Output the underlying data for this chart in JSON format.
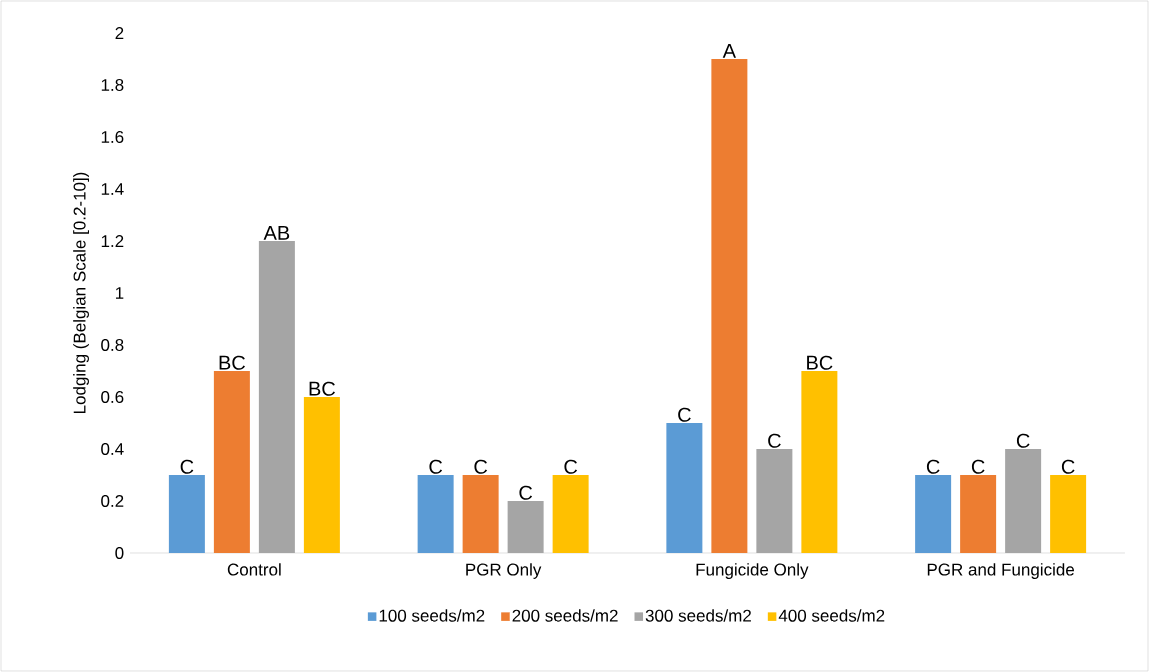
{
  "chart_data": {
    "type": "bar",
    "ylabel": "Lodging (Belgian Scale [0.2-10])",
    "categories": [
      "Control",
      "PGR Only",
      "Fungicide Only",
      "PGR and Fungicide"
    ],
    "series": [
      {
        "name": "100 seeds/m2",
        "color": "#5b9bd5",
        "values": [
          0.3,
          0.3,
          0.5,
          0.3
        ],
        "value_labels": [
          "C",
          "C",
          "C",
          "C"
        ]
      },
      {
        "name": "200 seeds/m2",
        "color": "#ed7d31",
        "values": [
          0.7,
          0.3,
          1.9,
          0.3
        ],
        "value_labels": [
          "BC",
          "C",
          "A",
          "C"
        ]
      },
      {
        "name": "300 seeds/m2",
        "color": "#a5a5a5",
        "values": [
          1.2,
          0.2,
          0.4,
          0.4
        ],
        "value_labels": [
          "AB",
          "C",
          "C",
          "C"
        ]
      },
      {
        "name": "400 seeds/m2",
        "color": "#ffc000",
        "values": [
          0.6,
          0.3,
          0.7,
          0.3
        ],
        "value_labels": [
          "BC",
          "C",
          "BC",
          "C"
        ]
      }
    ],
    "ylim": [
      0,
      2
    ],
    "yticks": [
      0,
      0.2,
      0.4,
      0.6,
      0.8,
      1,
      1.2,
      1.4,
      1.6,
      1.8,
      2
    ],
    "legend": "bottom"
  }
}
